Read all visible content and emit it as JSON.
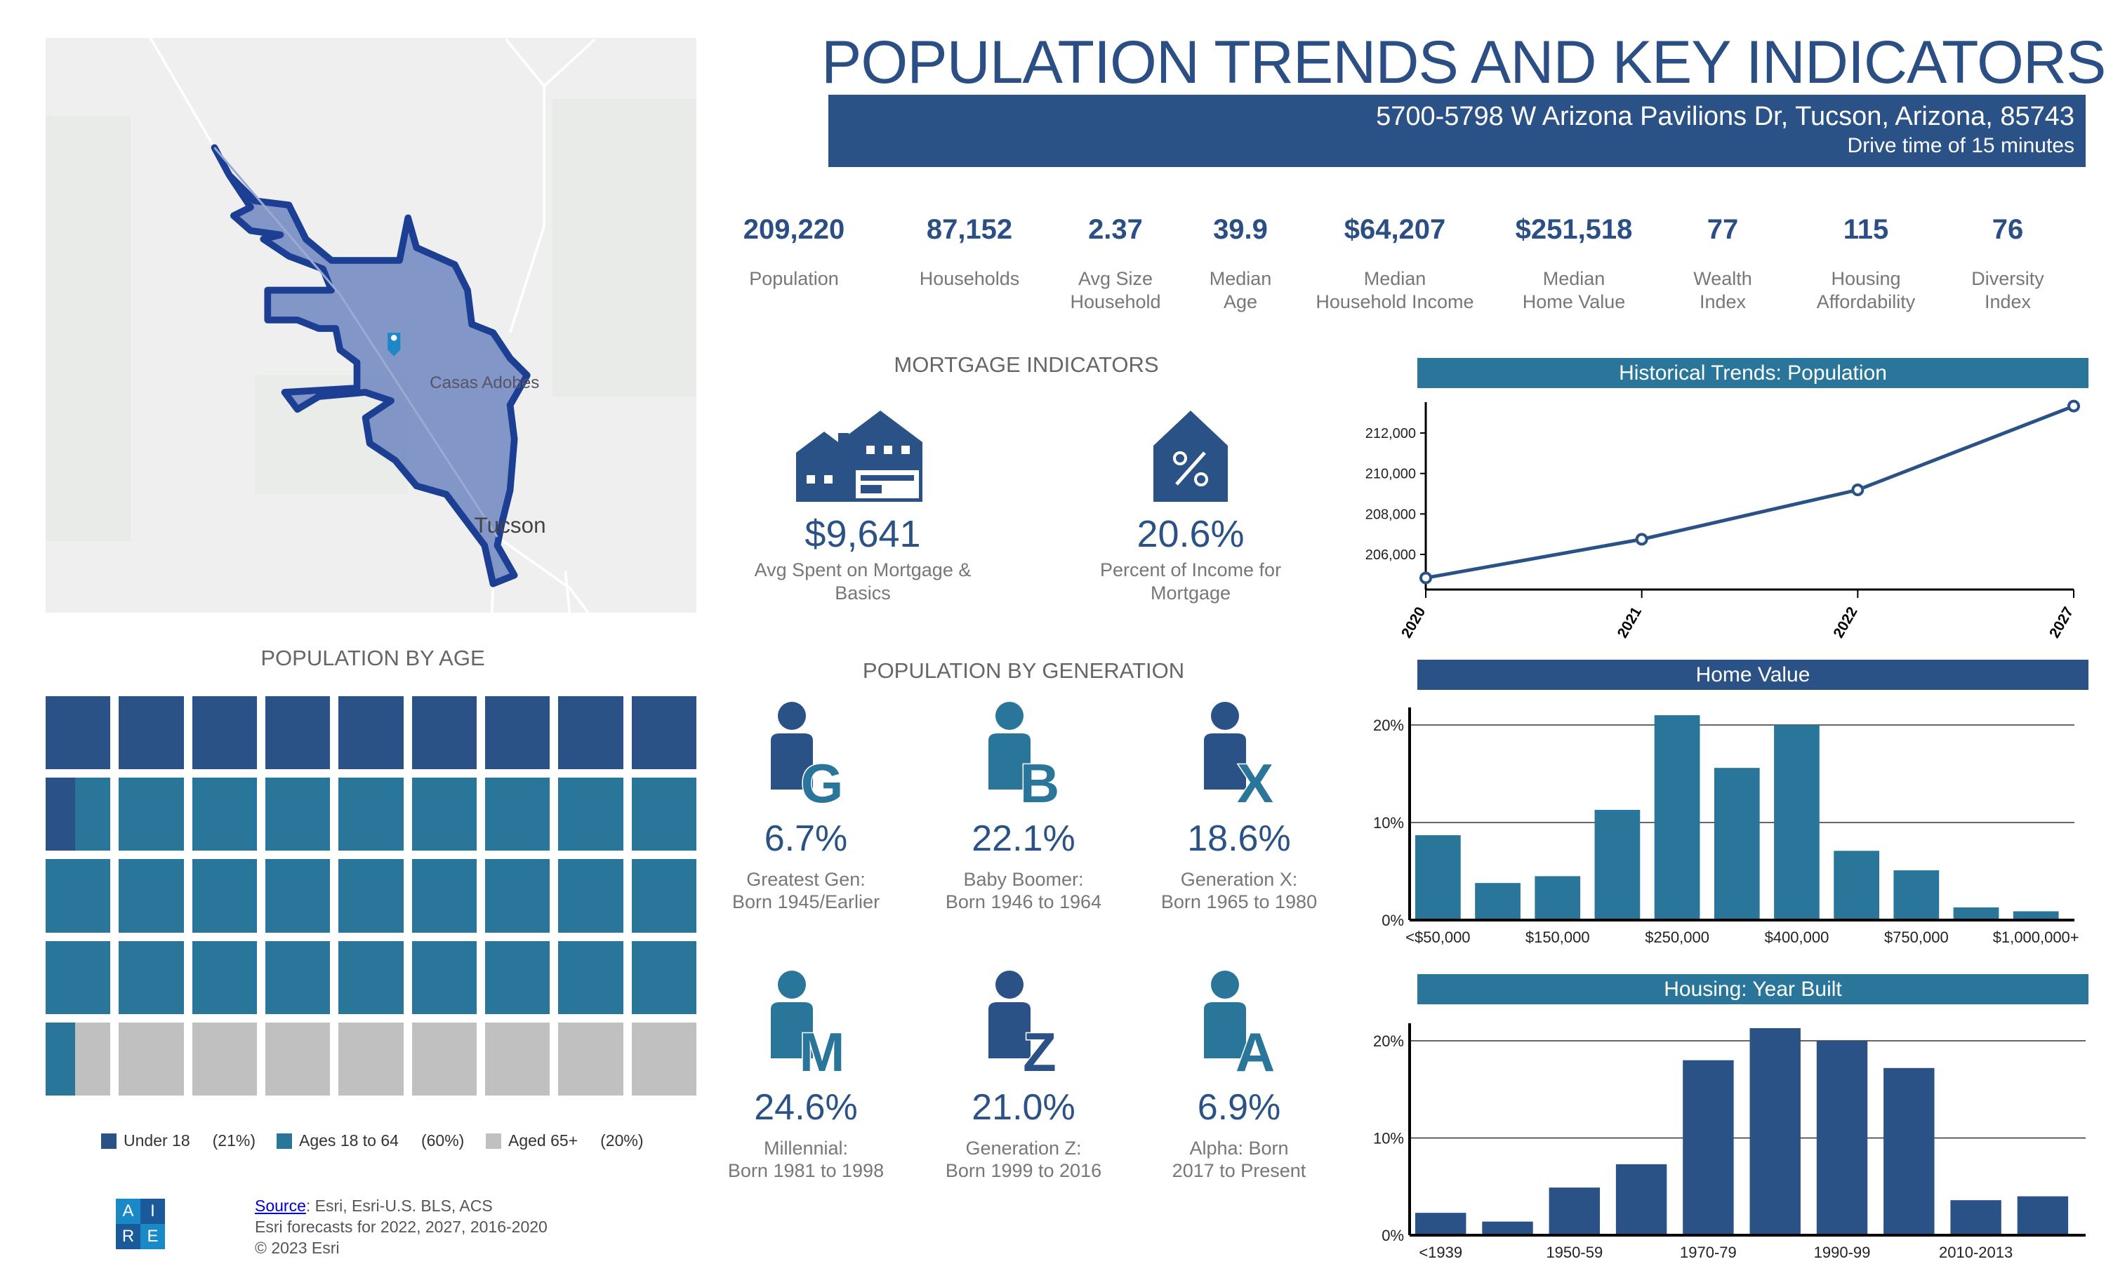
{
  "header": {
    "title": "POPULATION TRENDS AND KEY INDICATORS",
    "address": "5700-5798 W Arizona Pavilions Dr, Tucson, Arizona, 85743",
    "drive_time": "Drive time of 15 minutes"
  },
  "colors": {
    "navy": "#2b5286",
    "teal": "#2a769a",
    "gray": "#c0c0c0",
    "title": "#2b4f85"
  },
  "map": {
    "labels": [
      "Casas Adobes",
      "Tucson"
    ],
    "pin_icon": "map-pin-icon"
  },
  "kpis": [
    {
      "value": "209,220",
      "label": [
        "Population"
      ]
    },
    {
      "value": "87,152",
      "label": [
        "Households"
      ]
    },
    {
      "value": "2.37",
      "label": [
        "Avg Size",
        "Household"
      ]
    },
    {
      "value": "39.9",
      "label": [
        "Median",
        "Age"
      ]
    },
    {
      "value": "$64,207",
      "label": [
        "Median",
        "Household Income"
      ]
    },
    {
      "value": "$251,518",
      "label": [
        "Median",
        "Home Value"
      ]
    },
    {
      "value": "77",
      "label": [
        "Wealth",
        "Index"
      ]
    },
    {
      "value": "115",
      "label": [
        "Housing",
        "Affordability"
      ]
    },
    {
      "value": "76",
      "label": [
        "Diversity",
        "Index"
      ]
    }
  ],
  "mortgage": {
    "heading": "MORTGAGE INDICATORS",
    "items": [
      {
        "icon": "house-mortgage-icon",
        "value": "$9,641",
        "label": [
          "Avg Spent on Mortgage &",
          "Basics"
        ]
      },
      {
        "icon": "house-percent-icon",
        "value": "20.6%",
        "label": [
          "Percent of Income for",
          "Mortgage"
        ]
      }
    ]
  },
  "age": {
    "heading": "POPULATION BY AGE",
    "legend": [
      {
        "label": "Under 18",
        "pct": "(21%)",
        "value": 21,
        "color": "#2b5286"
      },
      {
        "label": "Ages 18 to 64",
        "pct": "(60%)",
        "value": 60,
        "color": "#2a769a"
      },
      {
        "label": "Aged 65+",
        "pct": "(20%)",
        "value": 20,
        "color": "#c0c0c0"
      }
    ]
  },
  "generation": {
    "heading": "POPULATION BY GENERATION",
    "items": [
      {
        "letter": "G",
        "value": "6.7%",
        "label": [
          "Greatest Gen:",
          "Born 1945/Earlier"
        ],
        "body": "#2b5286",
        "letter_color": "#2a769a"
      },
      {
        "letter": "B",
        "value": "22.1%",
        "label": [
          "Baby Boomer:",
          "Born 1946 to 1964"
        ],
        "body": "#2a769a",
        "letter_color": "#2a769a"
      },
      {
        "letter": "X",
        "value": "18.6%",
        "label": [
          "Generation X:",
          "Born 1965 to 1980"
        ],
        "body": "#2b5286",
        "letter_color": "#2a769a"
      },
      {
        "letter": "M",
        "value": "24.6%",
        "label": [
          "Millennial:",
          "Born 1981 to 1998"
        ],
        "body": "#2a769a",
        "letter_color": "#2a769a"
      },
      {
        "letter": "Z",
        "value": "21.0%",
        "label": [
          "Generation Z:",
          "Born 1999 to 2016"
        ],
        "body": "#2b5286",
        "letter_color": "#2b5286"
      },
      {
        "letter": "A",
        "value": "6.9%",
        "label": [
          "Alpha:  Born",
          "2017 to Present"
        ],
        "body": "#2a769a",
        "letter_color": "#2a769a"
      }
    ]
  },
  "footer": {
    "source_link": "Source",
    "source_text": ": Esri, Esri-U.S. BLS, ACS",
    "line2": "Esri forecasts for 2022, 2027, 2016-2020",
    "line3": "© 2023 Esri",
    "logo": [
      "A",
      "I",
      "R",
      "E"
    ]
  },
  "chart_data": [
    {
      "type": "line",
      "title": "Historical Trends: Population",
      "categories": [
        "2020",
        "2021",
        "2022",
        "2027"
      ],
      "values": [
        204840,
        206750,
        209190,
        213330
      ],
      "yticks": [
        "206,000",
        "208,000",
        "210,000",
        "212,000"
      ],
      "ytick_values": [
        206000,
        208000,
        210000,
        212000
      ],
      "ylim": [
        204500,
        213500
      ],
      "color": "#2b5286",
      "header_color": "#2a769a",
      "grid": false
    },
    {
      "type": "bar",
      "title": "Home Value",
      "categories": [
        "<$50,000",
        "",
        "$150,000",
        "",
        "$250,000",
        "",
        "$400,000",
        "",
        "$750,000",
        "",
        "$1,000,000+"
      ],
      "values": [
        8.7,
        3.8,
        4.5,
        11.3,
        21.0,
        15.6,
        20.0,
        7.1,
        5.1,
        1.3,
        0.9
      ],
      "yticks": [
        "0%",
        "10%",
        "20%"
      ],
      "ytick_values": [
        0,
        10,
        20
      ],
      "ylim": [
        0,
        22
      ],
      "color": "#2a769a",
      "header_color": "#2b5286",
      "grid": true
    },
    {
      "type": "bar",
      "title": "Housing: Year Built",
      "categories": [
        "<1939",
        "",
        "1950-59",
        "",
        "1970-79",
        "",
        "1990-99",
        "",
        "2010-2013",
        ""
      ],
      "values": [
        2.3,
        1.4,
        4.9,
        7.3,
        18.0,
        21.3,
        20.0,
        17.2,
        3.6,
        4.0
      ],
      "yticks": [
        "0%",
        "10%",
        "20%"
      ],
      "ytick_values": [
        0,
        10,
        20
      ],
      "ylim": [
        0,
        22
      ],
      "color": "#2b5286",
      "header_color": "#2a769a",
      "grid": true
    }
  ]
}
